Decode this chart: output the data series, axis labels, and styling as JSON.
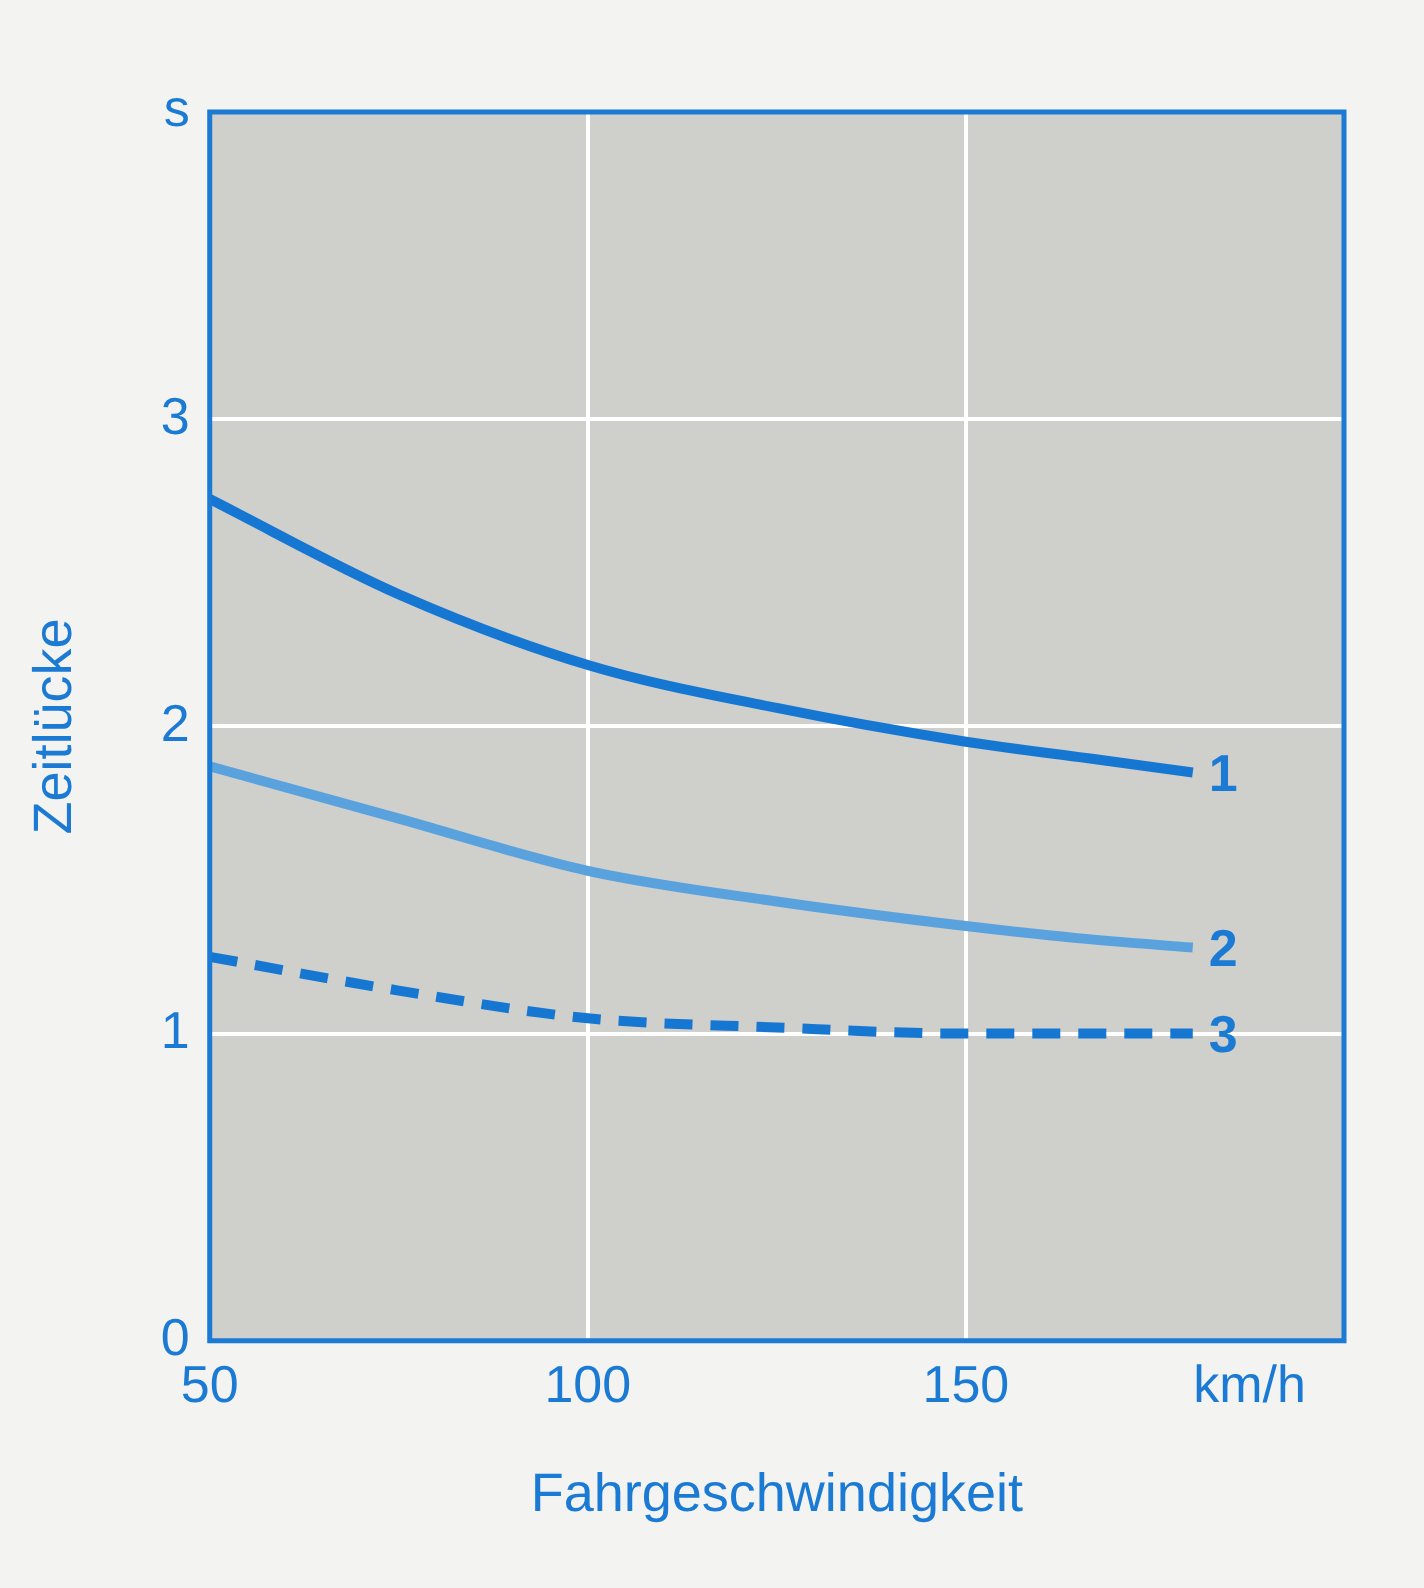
{
  "chart_data": {
    "type": "line",
    "xlabel": "Fahrgeschwindigkeit",
    "ylabel": "Zeitlücke",
    "xlim": [
      50,
      200
    ],
    "xticks": [
      50,
      100,
      150,
      {
        "value": 187.5,
        "label": "km/h"
      }
    ],
    "ylim": [
      0,
      4
    ],
    "yticks": [
      0,
      1,
      2,
      3,
      {
        "value": 4,
        "label": "s"
      }
    ],
    "grid": true,
    "legend": false,
    "marker": "none",
    "series": [
      {
        "name": "1",
        "color": "#1677d2",
        "line_style": "solid",
        "x": [
          50,
          75,
          100,
          125,
          150,
          165,
          180
        ],
        "values": [
          2.74,
          2.43,
          2.2,
          2.06,
          1.95,
          1.9,
          1.85
        ]
      },
      {
        "name": "2",
        "color": "#5aa2de",
        "line_style": "solid",
        "x": [
          50,
          75,
          100,
          125,
          150,
          165,
          180
        ],
        "values": [
          1.87,
          1.7,
          1.53,
          1.43,
          1.35,
          1.31,
          1.28
        ]
      },
      {
        "name": "3",
        "color": "#1677d2",
        "line_style": "dashed",
        "x": [
          50,
          75,
          100,
          125,
          150,
          165,
          180
        ],
        "values": [
          1.25,
          1.14,
          1.05,
          1.02,
          1.0,
          1.0,
          1.0
        ]
      }
    ]
  }
}
